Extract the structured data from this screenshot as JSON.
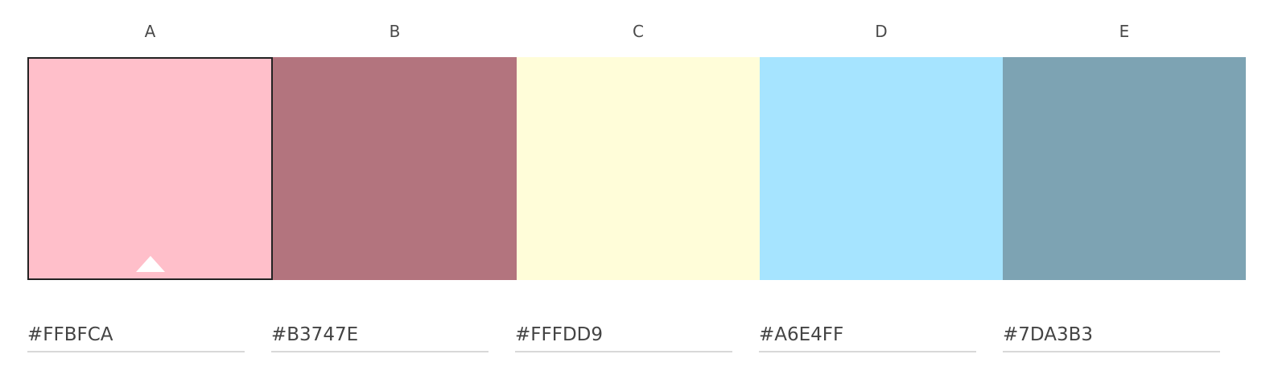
{
  "palette": {
    "columns": [
      {
        "label": "A",
        "color": "#FFBFCA",
        "hex": "#FFBFCA",
        "selected": true
      },
      {
        "label": "B",
        "color": "#B3747E",
        "hex": "#B3747E",
        "selected": false
      },
      {
        "label": "C",
        "color": "#FFFDD9",
        "hex": "#FFFDD9",
        "selected": false
      },
      {
        "label": "D",
        "color": "#A6E4FF",
        "hex": "#A6E4FF",
        "selected": false
      },
      {
        "label": "E",
        "color": "#7DA3B3",
        "hex": "#7DA3B3",
        "selected": false
      }
    ]
  },
  "icons": {
    "selected_marker": "triangle-up-icon"
  }
}
